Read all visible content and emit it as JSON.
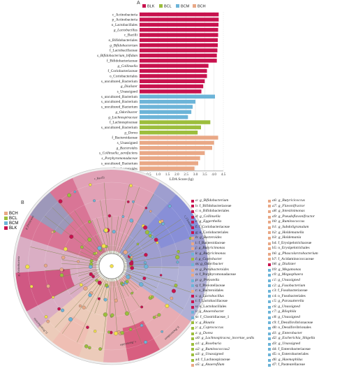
{
  "panelA_label": "A",
  "panelB_label": "B",
  "colors": {
    "BLK": "#c8124e",
    "BCL": "#9cbe3c",
    "BCM": "#6cb4d8",
    "BCH": "#e9a886"
  },
  "chart_data": [
    {
      "type": "bar",
      "orientation": "horizontal",
      "legend": [
        {
          "name": "BLK",
          "color": "#c8124e"
        },
        {
          "name": "BCL",
          "color": "#9cbe3c"
        },
        {
          "name": "BCM",
          "color": "#6cb4d8"
        },
        {
          "name": "BCH",
          "color": "#e9a886"
        }
      ],
      "legend_position": "top",
      "xlabel": "LDA Score (lg)",
      "xlim": [
        0,
        4.5
      ],
      "xticks": [
        "0.0",
        "0.5",
        "1.0",
        "1.5",
        "2.0",
        "2.5",
        "3.0",
        "3.5",
        "4.0",
        "4.5"
      ],
      "grid": "vertical-lines",
      "bars": [
        {
          "label": "c_Actinobacteria",
          "value": 4.25,
          "group": "BLK"
        },
        {
          "label": "p_Actinobacteria",
          "value": 4.25,
          "group": "BLK"
        },
        {
          "label": "o_Lactobacillales",
          "value": 4.24,
          "group": "BLK"
        },
        {
          "label": "g_Lactobacillus",
          "value": 4.22,
          "group": "BLK"
        },
        {
          "label": "c_Bacilli",
          "value": 4.22,
          "group": "BLK"
        },
        {
          "label": "o_Bifidobacteriales",
          "value": 4.2,
          "group": "BLK"
        },
        {
          "label": "g_Bifidobacterium",
          "value": 4.2,
          "group": "BLK"
        },
        {
          "label": "f_Lactobacillaceae",
          "value": 4.18,
          "group": "BLK"
        },
        {
          "label": "s_Bifidobacterium_bifidum",
          "value": 4.15,
          "group": "BLK"
        },
        {
          "label": "f_Bifidobacteriaceae",
          "value": 4.15,
          "group": "BLK"
        },
        {
          "label": "g_Collinsella",
          "value": 3.7,
          "group": "BLK"
        },
        {
          "label": "f_Coriobacteriaceae",
          "value": 3.62,
          "group": "BLK"
        },
        {
          "label": "o_Coriobacteriales",
          "value": 3.62,
          "group": "BLK"
        },
        {
          "label": "s_uncultured_Bacterium",
          "value": 3.5,
          "group": "BLK"
        },
        {
          "label": "g_Dialister",
          "value": 3.42,
          "group": "BLK"
        },
        {
          "label": "s_Unassigned",
          "value": 3.32,
          "group": "BLK"
        },
        {
          "label": "s_uncultured_Bacterium",
          "value": 4.05,
          "group": "BCM"
        },
        {
          "label": "s_uncultured_Bacterium",
          "value": 3.0,
          "group": "BCM"
        },
        {
          "label": "s_uncultured_Bacterium",
          "value": 2.85,
          "group": "BCM"
        },
        {
          "label": "g_Odoribacter",
          "value": 2.78,
          "group": "BCM"
        },
        {
          "label": "g_Lachnospiraceae",
          "value": 2.6,
          "group": "BCM"
        },
        {
          "label": "f_Lachnospiraceae",
          "value": 3.8,
          "group": "BCL"
        },
        {
          "label": "s_uncultured_Bacterium",
          "value": 3.3,
          "group": "BCL"
        },
        {
          "label": "g_Dorea",
          "value": 3.12,
          "group": "BCL"
        },
        {
          "label": "f_Bacteroidaceae",
          "value": 4.22,
          "group": "BCH"
        },
        {
          "label": "s_Unassigned",
          "value": 4.0,
          "group": "BCH"
        },
        {
          "label": "g_Bacteroides",
          "value": 3.9,
          "group": "BCH"
        },
        {
          "label": "s_Collinsella_aerofaciens",
          "value": 3.5,
          "group": "BCH"
        },
        {
          "label": "s_Porphyromonadaceae",
          "value": 3.25,
          "group": "BCH"
        },
        {
          "label": "s_uncultured_Bacterium",
          "value": 3.15,
          "group": "BCH"
        },
        {
          "label": "g_Parabacteroides",
          "value": 2.95,
          "group": "BCH"
        }
      ]
    },
    {
      "type": "cladogram",
      "legend": [
        {
          "name": "BCH",
          "color": "#e9a886"
        },
        {
          "name": "BCL",
          "color": "#9cbe3c"
        },
        {
          "name": "BCM",
          "color": "#6cb4d8"
        },
        {
          "name": "BLK",
          "color": "#c8124e"
        }
      ],
      "sector_labels": [
        "c_Bacilli",
        "p_Firmicutes",
        "c_Clostridia",
        "p_Bacteroidetes",
        "c_Bacteroidia",
        "p_Actinobacteria",
        "p_Proteobacteria"
      ],
      "taxa_legend_col1": [
        {
          "key": "a",
          "text": "g_Bifidobacterium",
          "group": "BLK"
        },
        {
          "key": "b",
          "text": "f_Bifidobacteriaceae",
          "group": "BLK"
        },
        {
          "key": "c",
          "text": "o_Bifidobacteriales",
          "group": "BLK"
        },
        {
          "key": "d",
          "text": "g_Collinsella",
          "group": "BLK"
        },
        {
          "key": "e",
          "text": "g_Eggerthella",
          "group": "BLK"
        },
        {
          "key": "f",
          "text": "f_Coriobacteriaceae",
          "group": "BLK"
        },
        {
          "key": "g",
          "text": "o_Coriobacteriales",
          "group": "BLK"
        },
        {
          "key": "h",
          "text": "g_Bacteroides",
          "group": "BCH"
        },
        {
          "key": "i",
          "text": "f_Bacteroidaceae",
          "group": "BCH"
        },
        {
          "key": "j",
          "text": "g_Butyricimonas",
          "group": "BCH"
        },
        {
          "key": "k",
          "text": "g_Butyricimonas",
          "group": "BCM"
        },
        {
          "key": "l",
          "text": "g_Coprobacter",
          "group": "BCL"
        },
        {
          "key": "m",
          "text": "g_Odoribacter",
          "group": "BCM"
        },
        {
          "key": "n",
          "text": "g_Parabacteroides",
          "group": "BCH"
        },
        {
          "key": "o",
          "text": "f_Porphyromonadaceae",
          "group": "BCH"
        },
        {
          "key": "p",
          "text": "g_Prevotella",
          "group": "BCM"
        },
        {
          "key": "q",
          "text": "f_Prevotellaceae",
          "group": "BCM"
        },
        {
          "key": "r",
          "text": "o_Bacteroidales",
          "group": "BCH"
        },
        {
          "key": "s",
          "text": "g_Lactobacillus",
          "group": "BLK"
        },
        {
          "key": "t",
          "text": "f_Lactobacillaceae",
          "group": "BLK"
        },
        {
          "key": "u",
          "text": "o_Lactobacillales",
          "group": "BLK"
        },
        {
          "key": "v",
          "text": "g_Anaerobacter",
          "group": "BCM"
        },
        {
          "key": "w",
          "text": "f_Clostridiaceae_1",
          "group": "BCM"
        },
        {
          "key": "x",
          "text": "g_Blautia",
          "group": "BCL"
        },
        {
          "key": "y",
          "text": "g_Coprococcus",
          "group": "BCL"
        },
        {
          "key": "z",
          "text": "g_Dorea",
          "group": "BCL"
        },
        {
          "key": "a0",
          "text": "g_Lachnospiracea_incertae_sedis",
          "group": "BCL"
        },
        {
          "key": "a1",
          "text": "g_Roseburia",
          "group": "BCL"
        },
        {
          "key": "a2",
          "text": "g_Ruminococcus2",
          "group": "BCL"
        },
        {
          "key": "a3",
          "text": "g_Unassigned",
          "group": "BCL"
        },
        {
          "key": "a4",
          "text": "f_Lachnospiraceae",
          "group": "BCL"
        },
        {
          "key": "a5",
          "text": "g_Anaerofilum",
          "group": "BCH"
        }
      ],
      "taxa_legend_col2": [
        {
          "key": "a6",
          "text": "g_Butyricicoccus",
          "group": "BCH"
        },
        {
          "key": "a7",
          "text": "g_Flavonifractor",
          "group": "BCH"
        },
        {
          "key": "a8",
          "text": "g_Intestinimonas",
          "group": "BCH"
        },
        {
          "key": "a9",
          "text": "g_Pseudoflavonifractor",
          "group": "BCH"
        },
        {
          "key": "b0",
          "text": "g_Ruminococcus",
          "group": "BCH"
        },
        {
          "key": "b1",
          "text": "g_Subdoligranulum",
          "group": "BCH"
        },
        {
          "key": "b2",
          "text": "g_Holdemanella",
          "group": "BCH"
        },
        {
          "key": "b3",
          "text": "g_Holdemania",
          "group": "BCH"
        },
        {
          "key": "b4",
          "text": "f_Erysipelotrichaceae",
          "group": "BCH"
        },
        {
          "key": "b5",
          "text": "o_Erysipelotrichales",
          "group": "BCH"
        },
        {
          "key": "b6",
          "text": "g_Phascolarctobacterium",
          "group": "BCH"
        },
        {
          "key": "b7",
          "text": "f_Acidaminococcaceae",
          "group": "BCH"
        },
        {
          "key": "b8",
          "text": "g_Dialister",
          "group": "BLK"
        },
        {
          "key": "b9",
          "text": "g_Megamonas",
          "group": "BCM"
        },
        {
          "key": "c0",
          "text": "g_Megasphaera",
          "group": "BCM"
        },
        {
          "key": "c1",
          "text": "g_Unassigned",
          "group": "BCM"
        },
        {
          "key": "c2",
          "text": "g_Fusobacterium",
          "group": "BCM"
        },
        {
          "key": "c3",
          "text": "f_Fusobacteriaceae",
          "group": "BCM"
        },
        {
          "key": "c4",
          "text": "o_Fusobacteriales",
          "group": "BCM"
        },
        {
          "key": "c5",
          "text": "g_Parasutterella",
          "group": "BCM"
        },
        {
          "key": "c6",
          "text": "g_Unassigned",
          "group": "BCM"
        },
        {
          "key": "c7",
          "text": "g_Bilophila",
          "group": "BCM"
        },
        {
          "key": "c8",
          "text": "g_Unassigned",
          "group": "BCM"
        },
        {
          "key": "c9",
          "text": "f_Desulfovibrionaceae",
          "group": "BCM"
        },
        {
          "key": "d0",
          "text": "o_Desulfovibrionales",
          "group": "BCM"
        },
        {
          "key": "d1",
          "text": "g_Enterobacter",
          "group": "BCM"
        },
        {
          "key": "d2",
          "text": "g_Escherichia_Shigella",
          "group": "BCM"
        },
        {
          "key": "d3",
          "text": "g_Unassigned",
          "group": "BCM"
        },
        {
          "key": "d4",
          "text": "f_Enterobacteriaceae",
          "group": "BCM"
        },
        {
          "key": "d5",
          "text": "o_Enterobacteriales",
          "group": "BCM"
        },
        {
          "key": "d6",
          "text": "g_Haemophilus",
          "group": "BCM"
        },
        {
          "key": "d7",
          "text": "f_Pasteurellaceae",
          "group": "BCM"
        }
      ]
    }
  ]
}
